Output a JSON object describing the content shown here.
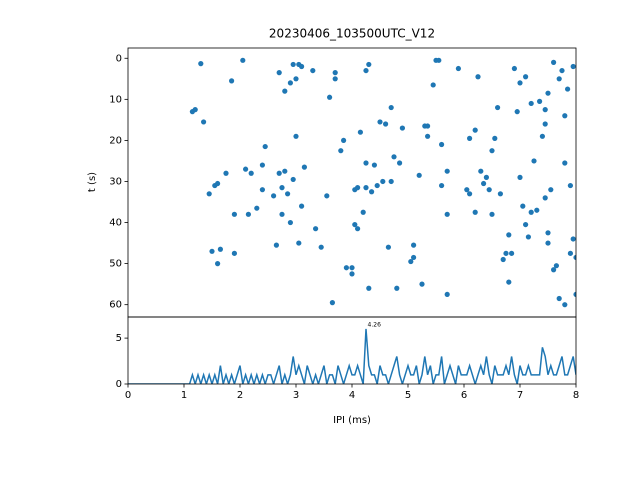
{
  "chart_data": [
    {
      "type": "scatter",
      "title": "20230406_103500UTC_V12",
      "ylabel": "t (s)",
      "color": "#1f77b4",
      "xlim": [
        0,
        8
      ],
      "ylim": [
        63,
        -2.5
      ],
      "yticks": [
        0,
        10,
        20,
        30,
        40,
        50,
        60
      ],
      "x": [
        1.15,
        1.2,
        1.3,
        1.35,
        1.45,
        1.5,
        1.55,
        1.6,
        1.6,
        1.65,
        1.75,
        1.85,
        1.9,
        1.9,
        2.05,
        2.1,
        2.15,
        2.2,
        2.3,
        2.4,
        2.4,
        2.45,
        2.6,
        2.65,
        2.7,
        2.7,
        2.75,
        2.75,
        2.8,
        2.8,
        2.85,
        2.9,
        2.9,
        2.95,
        2.95,
        3.0,
        3.0,
        3.05,
        3.05,
        3.1,
        3.1,
        3.15,
        3.3,
        3.35,
        3.45,
        3.55,
        3.6,
        3.65,
        3.7,
        3.7,
        3.8,
        3.85,
        3.9,
        4.0,
        4.0,
        4.05,
        4.05,
        4.1,
        4.1,
        4.15,
        4.2,
        4.25,
        4.25,
        4.25,
        4.3,
        4.3,
        4.35,
        4.4,
        4.45,
        4.5,
        4.55,
        4.6,
        4.65,
        4.7,
        4.7,
        4.75,
        4.8,
        4.85,
        4.9,
        5.05,
        5.1,
        5.1,
        5.2,
        5.25,
        5.3,
        5.35,
        5.35,
        5.45,
        5.5,
        5.55,
        5.6,
        5.6,
        5.7,
        5.7,
        5.7,
        5.9,
        6.05,
        6.1,
        6.1,
        6.2,
        6.2,
        6.25,
        6.3,
        6.35,
        6.4,
        6.45,
        6.5,
        6.5,
        6.55,
        6.6,
        6.65,
        6.7,
        6.75,
        6.8,
        6.8,
        6.85,
        6.9,
        6.95,
        7.0,
        7.0,
        7.05,
        7.1,
        7.1,
        7.15,
        7.2,
        7.25,
        7.3,
        7.35,
        7.4,
        7.45,
        7.45,
        7.5,
        7.5,
        7.55,
        7.6,
        7.65,
        7.7,
        7.75,
        7.8,
        7.8,
        7.85,
        7.9,
        7.95,
        8.0,
        8.0,
        7.95,
        7.5,
        7.45,
        7.7,
        7.8,
        7.9,
        7.2,
        7.6
      ],
      "values": [
        13,
        12.5,
        1.3,
        15.5,
        33,
        47,
        31,
        30.5,
        50,
        46.5,
        28,
        5.5,
        47.5,
        38,
        0.5,
        27,
        38,
        28,
        36.5,
        26,
        32,
        21.5,
        33.5,
        45.5,
        28,
        3.5,
        31.5,
        38,
        8,
        27.5,
        33,
        6,
        40,
        1.5,
        29.5,
        5,
        19,
        1.5,
        45,
        2,
        36,
        26.5,
        3,
        41.5,
        46,
        33.5,
        9.5,
        59.5,
        5,
        3.5,
        22.5,
        20,
        51,
        52.5,
        51,
        32,
        40.5,
        31.5,
        41.5,
        18,
        37.5,
        3,
        25.5,
        31.5,
        56,
        1.5,
        32.5,
        26,
        31,
        15.5,
        30,
        16,
        46,
        30,
        12,
        24,
        56,
        25.5,
        17,
        49.5,
        45.5,
        48.5,
        28.5,
        55,
        16.5,
        19,
        16.5,
        6.5,
        0.5,
        0.5,
        31,
        21,
        57.5,
        38,
        27.5,
        2.5,
        32,
        33,
        19.5,
        17.5,
        37.5,
        4.5,
        27.5,
        30.5,
        29,
        32,
        38,
        22.5,
        19.5,
        12,
        33,
        49,
        47.5,
        43,
        54.5,
        47.5,
        2.5,
        13,
        29,
        6,
        36,
        4.5,
        40.5,
        43.5,
        37.5,
        25,
        37,
        10.5,
        19,
        34,
        16,
        42.5,
        45,
        32,
        51.5,
        50.5,
        58.5,
        3,
        25.5,
        60,
        7.5,
        31,
        44,
        48.5,
        57.5,
        2,
        8.5,
        12.5,
        5,
        14,
        47.5,
        11,
        1
      ]
    },
    {
      "type": "line",
      "xlabel": "IPI (ms)",
      "color": "#1f77b4",
      "xlim": [
        0,
        8
      ],
      "ylim": [
        0,
        7.3
      ],
      "xticks": [
        0,
        1,
        2,
        3,
        4,
        5,
        6,
        7,
        8
      ],
      "yticks": [
        0,
        5
      ],
      "annotation": {
        "text": "4.26",
        "x": 4.26,
        "y": 6
      },
      "x": [
        0,
        1.1,
        1.15,
        1.2,
        1.25,
        1.3,
        1.35,
        1.4,
        1.45,
        1.5,
        1.55,
        1.6,
        1.65,
        1.7,
        1.75,
        1.8,
        1.85,
        1.9,
        1.95,
        2.0,
        2.05,
        2.1,
        2.15,
        2.2,
        2.25,
        2.3,
        2.35,
        2.4,
        2.45,
        2.5,
        2.55,
        2.6,
        2.65,
        2.7,
        2.75,
        2.8,
        2.85,
        2.9,
        2.95,
        3.0,
        3.05,
        3.1,
        3.15,
        3.2,
        3.25,
        3.3,
        3.35,
        3.4,
        3.45,
        3.5,
        3.55,
        3.6,
        3.65,
        3.7,
        3.75,
        3.8,
        3.85,
        3.9,
        3.95,
        4.0,
        4.05,
        4.1,
        4.15,
        4.2,
        4.25,
        4.3,
        4.35,
        4.4,
        4.45,
        4.5,
        4.55,
        4.6,
        4.65,
        4.7,
        4.75,
        4.8,
        4.85,
        4.9,
        4.95,
        5.0,
        5.05,
        5.1,
        5.15,
        5.2,
        5.25,
        5.3,
        5.35,
        5.4,
        5.45,
        5.5,
        5.55,
        5.6,
        5.65,
        5.7,
        5.75,
        5.8,
        5.85,
        5.9,
        5.95,
        6.0,
        6.05,
        6.1,
        6.15,
        6.2,
        6.25,
        6.3,
        6.35,
        6.4,
        6.45,
        6.5,
        6.55,
        6.6,
        6.65,
        6.7,
        6.75,
        6.8,
        6.85,
        6.9,
        6.95,
        7.0,
        7.05,
        7.1,
        7.15,
        7.2,
        7.25,
        7.3,
        7.35,
        7.4,
        7.45,
        7.5,
        7.55,
        7.6,
        7.65,
        7.7,
        7.75,
        7.8,
        7.85,
        7.9,
        7.95,
        8.0
      ],
      "values": [
        0,
        0,
        1,
        0,
        1,
        0,
        1,
        0,
        1,
        0,
        1,
        0,
        2,
        0,
        1,
        0,
        1,
        0,
        1,
        2,
        0,
        1,
        0,
        1,
        0,
        1,
        0,
        1,
        0,
        1,
        1,
        0,
        1,
        2,
        0,
        1,
        0,
        1,
        3,
        1,
        2,
        1,
        0,
        2,
        1,
        0,
        1,
        0,
        1,
        2,
        0,
        1,
        1,
        0,
        2,
        1,
        0,
        1,
        2,
        1,
        1,
        2,
        1,
        0,
        6,
        2,
        1,
        1,
        0,
        2,
        1,
        1,
        0,
        1,
        2,
        3,
        1,
        0,
        1,
        2,
        1,
        1,
        2,
        0,
        1,
        3,
        1,
        2,
        0,
        1,
        1,
        3,
        0,
        1,
        2,
        1,
        0,
        2,
        1,
        1,
        1,
        2,
        1,
        0,
        1,
        2,
        1,
        3,
        1,
        0,
        2,
        1,
        1,
        1,
        2,
        1,
        3,
        1,
        0,
        2,
        1,
        1,
        2,
        1,
        1,
        1,
        1,
        4,
        3,
        1,
        2,
        1,
        1,
        2,
        3,
        1,
        1,
        2,
        3,
        1
      ]
    }
  ]
}
